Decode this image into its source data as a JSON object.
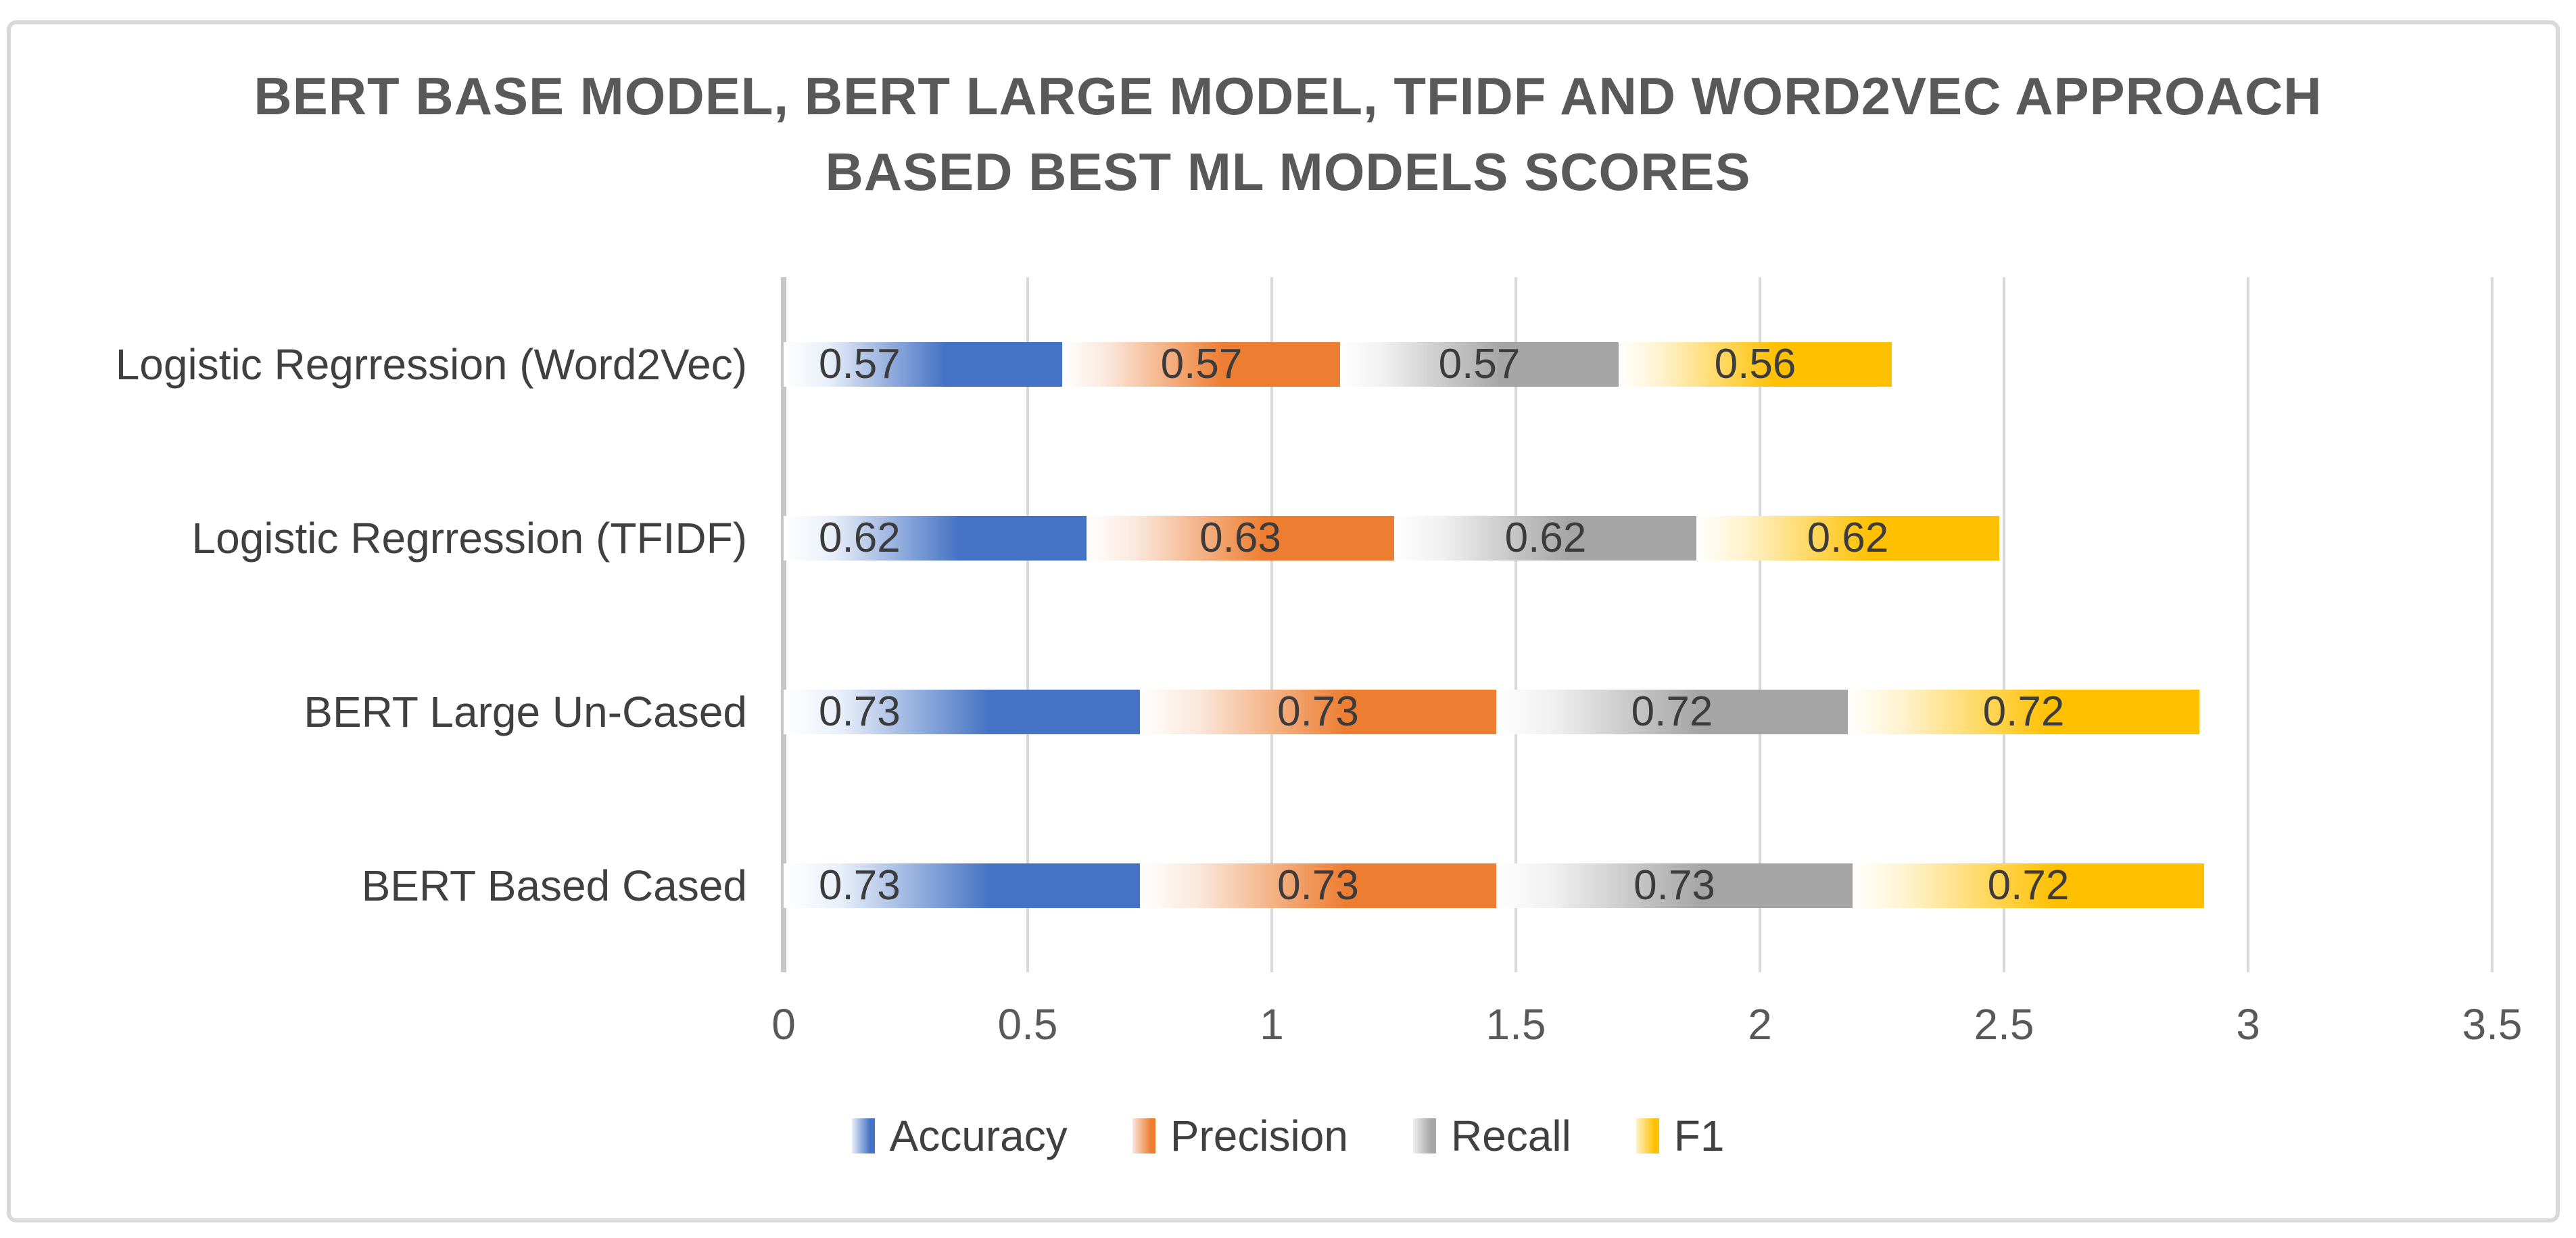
{
  "chart": {
    "title": "BERT BASE MODEL, BERT LARGE MODEL, TFIDF AND WORD2VEC APPROACH BASED BEST ML MODELS SCORES"
  },
  "chart_data": {
    "type": "bar",
    "orientation": "horizontal-stacked",
    "title": "BERT BASE MODEL, BERT LARGE MODEL, TFIDF AND WORD2VEC APPROACH BASED BEST ML MODELS SCORES",
    "categories": [
      "Logistic Regrression (Word2Vec)",
      "Logistic Regrression (TFIDF)",
      "BERT Large Un-Cased",
      "BERT Based Cased"
    ],
    "series": [
      {
        "name": "Accuracy",
        "color": "#4472C4",
        "light": "#E9EFF9",
        "values": [
          0.57,
          0.62,
          0.73,
          0.73
        ]
      },
      {
        "name": "Precision",
        "color": "#ED7D31",
        "light": "#FBE8DC",
        "values": [
          0.57,
          0.63,
          0.73,
          0.73
        ]
      },
      {
        "name": "Recall",
        "color": "#A5A5A5",
        "light": "#F0F0F0",
        "values": [
          0.57,
          0.62,
          0.72,
          0.73
        ]
      },
      {
        "name": "F1",
        "color": "#FFC000",
        "light": "#FFF2CC",
        "values": [
          0.56,
          0.62,
          0.72,
          0.72
        ]
      }
    ],
    "value_labels": [
      [
        "0.57",
        "0.57",
        "0.57",
        "0.56"
      ],
      [
        "0.62",
        "0.63",
        "0.62",
        "0.62"
      ],
      [
        "0.73",
        "0.73",
        "0.72",
        "0.72"
      ],
      [
        "0.73",
        "0.73",
        "0.73",
        "0.72"
      ]
    ],
    "x_axis": {
      "min": 0,
      "max": 3.5,
      "step": 0.5,
      "tick_labels": [
        "0",
        "0.5",
        "1",
        "1.5",
        "2",
        "2.5",
        "3",
        "3.5"
      ]
    },
    "legend": {
      "position": "bottom",
      "entries": [
        "Accuracy",
        "Precision",
        "Recall",
        "F1"
      ]
    },
    "grid": true,
    "xlabel": "",
    "ylabel": ""
  },
  "colors": {
    "gridline": "#D9D9D9",
    "axis_zero_line": "#C6C6C6",
    "title_text": "#595959",
    "tick_text": "#595959",
    "category_text": "#404040",
    "data_label_text": "#3C3C3C",
    "frame_border": "#D9D9D9",
    "background": "#FFFFFF"
  }
}
